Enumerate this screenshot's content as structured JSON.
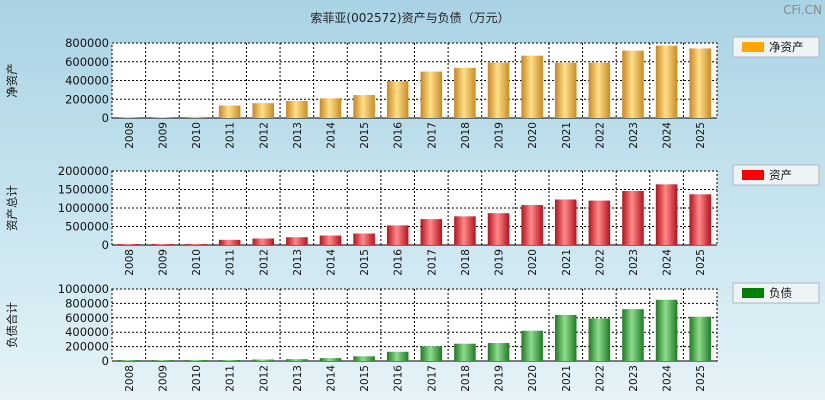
{
  "title": "索菲亚(002572)资产与负债（万元）",
  "watermark": "CFi.CN",
  "colors": {
    "net_assets": "#ffa500",
    "assets": "#ff0000",
    "liabilities": "#008000"
  },
  "chart_data": [
    {
      "type": "bar",
      "ylabel": "净资产",
      "legend": "净资产",
      "ylim": [
        0,
        800000
      ],
      "yticks": [
        "0",
        "200000",
        "400000",
        "600000",
        "800000"
      ],
      "categories": [
        "2008",
        "2009",
        "2010",
        "2011",
        "2012",
        "2013",
        "2014",
        "2015",
        "2016",
        "2017",
        "2018",
        "2019",
        "2020",
        "2021",
        "2022",
        "2023",
        "2024",
        "2025"
      ],
      "values": [
        3000,
        4000,
        13000,
        133000,
        158000,
        182000,
        210000,
        245000,
        395000,
        495000,
        535000,
        590000,
        665000,
        590000,
        590000,
        718000,
        772000,
        742000
      ]
    },
    {
      "type": "bar",
      "ylabel": "资产总计",
      "legend": "资产",
      "ylim": [
        0,
        2000000
      ],
      "yticks": [
        "0",
        "500000",
        "1000000",
        "1500000",
        "2000000"
      ],
      "categories": [
        "2008",
        "2009",
        "2010",
        "2011",
        "2012",
        "2013",
        "2014",
        "2015",
        "2016",
        "2017",
        "2018",
        "2019",
        "2020",
        "2021",
        "2022",
        "2023",
        "2024",
        "2025"
      ],
      "values": [
        15000,
        16000,
        20000,
        140000,
        175000,
        210000,
        255000,
        310000,
        530000,
        700000,
        775000,
        860000,
        1080000,
        1230000,
        1200000,
        1460000,
        1640000,
        1370000
      ]
    },
    {
      "type": "bar",
      "ylabel": "负债合计",
      "legend": "负债",
      "ylim": [
        0,
        1000000
      ],
      "yticks": [
        "0",
        "200000",
        "400000",
        "600000",
        "800000",
        "1000000"
      ],
      "categories": [
        "2008",
        "2009",
        "2010",
        "2011",
        "2012",
        "2013",
        "2014",
        "2015",
        "2016",
        "2017",
        "2018",
        "2019",
        "2020",
        "2021",
        "2022",
        "2023",
        "2024",
        "2025"
      ],
      "values": [
        8000,
        9000,
        10000,
        12000,
        20000,
        25000,
        40000,
        65000,
        128000,
        205000,
        240000,
        250000,
        420000,
        640000,
        590000,
        720000,
        850000,
        615000
      ]
    }
  ]
}
